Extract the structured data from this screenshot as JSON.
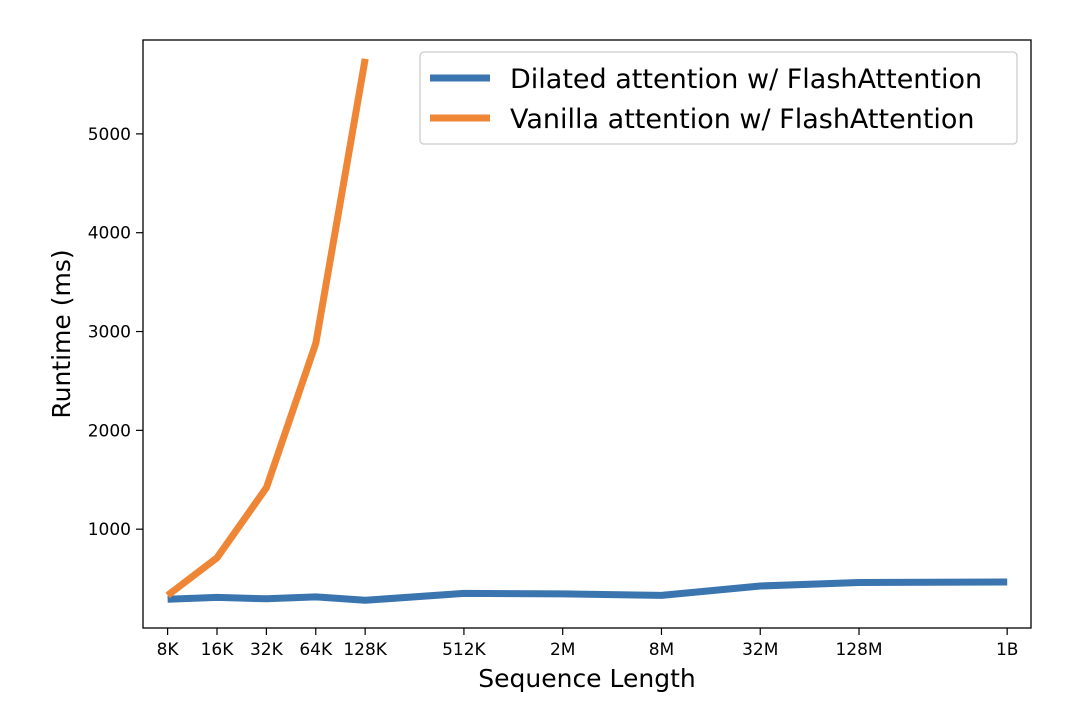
{
  "chart_data": {
    "type": "line",
    "xlabel": "Sequence Length",
    "ylabel": "Runtime (ms)",
    "x_ticks": [
      "8K",
      "16K",
      "32K",
      "64K",
      "128K",
      "512K",
      "2M",
      "8M",
      "32M",
      "128M",
      "1B"
    ],
    "x_values": [
      8192,
      16384,
      32768,
      65536,
      131072,
      524288,
      2097152,
      8388608,
      33554432,
      134217728,
      1073741824
    ],
    "x_scale": "log2",
    "xlim": [
      5800,
      1500000000
    ],
    "ylim": [
      0,
      5950
    ],
    "y_ticks": [
      1000,
      2000,
      3000,
      4000,
      5000
    ],
    "grid": false,
    "legend_position": "top-right",
    "series": [
      {
        "name": "Dilated attention w/ FlashAttention",
        "color": "#3b75af",
        "x": [
          8192,
          16384,
          32768,
          65536,
          131072,
          524288,
          2097152,
          8388608,
          33554432,
          134217728,
          1073741824
        ],
        "y": [
          290,
          310,
          295,
          315,
          280,
          350,
          345,
          330,
          425,
          460,
          465
        ]
      },
      {
        "name": "Vanilla attention w/ FlashAttention",
        "color": "#ef8636",
        "x": [
          8192,
          16384,
          32768,
          65536,
          131072
        ],
        "y": [
          330,
          710,
          1420,
          2880,
          5760
        ]
      }
    ]
  }
}
